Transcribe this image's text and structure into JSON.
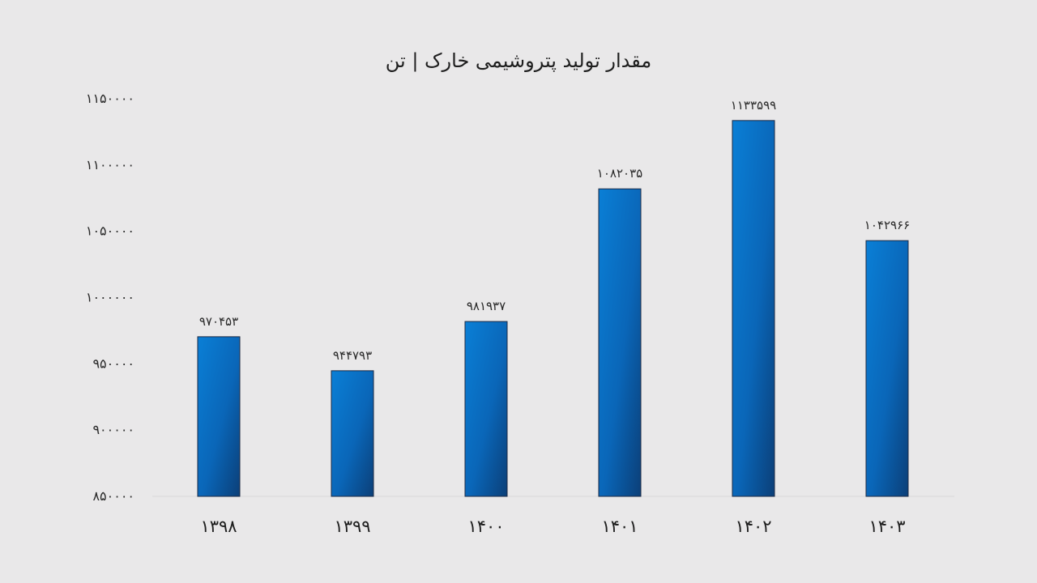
{
  "chart_data": {
    "type": "bar",
    "title": "مقدار تولید پتروشیمی خارک | تن",
    "xlabel": "",
    "ylabel": "",
    "categories": [
      "۱۳۹۸",
      "۱۳۹۹",
      "۱۴۰۰",
      "۱۴۰۱",
      "۱۴۰۲",
      "۱۴۰۳"
    ],
    "values": [
      970453,
      944793,
      981937,
      1082035,
      1133599,
      1042966
    ],
    "data_labels": [
      "۹۷۰۴۵۳",
      "۹۴۴۷۹۳",
      "۹۸۱۹۳۷",
      "۱۰۸۲۰۳۵",
      "۱۱۳۳۵۹۹",
      "۱۰۴۲۹۶۶"
    ],
    "ylim": [
      850000,
      1150000
    ],
    "yticks": [
      850000,
      900000,
      950000,
      1000000,
      1050000,
      1100000,
      1150000
    ],
    "ytick_labels": [
      "۸۵۰۰۰۰",
      "۹۰۰۰۰۰",
      "۹۵۰۰۰۰",
      "۱۰۰۰۰۰۰",
      "۱۰۵۰۰۰۰",
      "۱۱۰۰۰۰۰",
      "۱۱۵۰۰۰۰"
    ],
    "grid": false,
    "legend": "none",
    "colors": {
      "background": "#e9e8e9",
      "bar_light": "#0a7fd6",
      "bar_dark": "#0b3f78",
      "bar_outline": "#1d2a44",
      "axis_line": "#d9d9d9"
    }
  }
}
